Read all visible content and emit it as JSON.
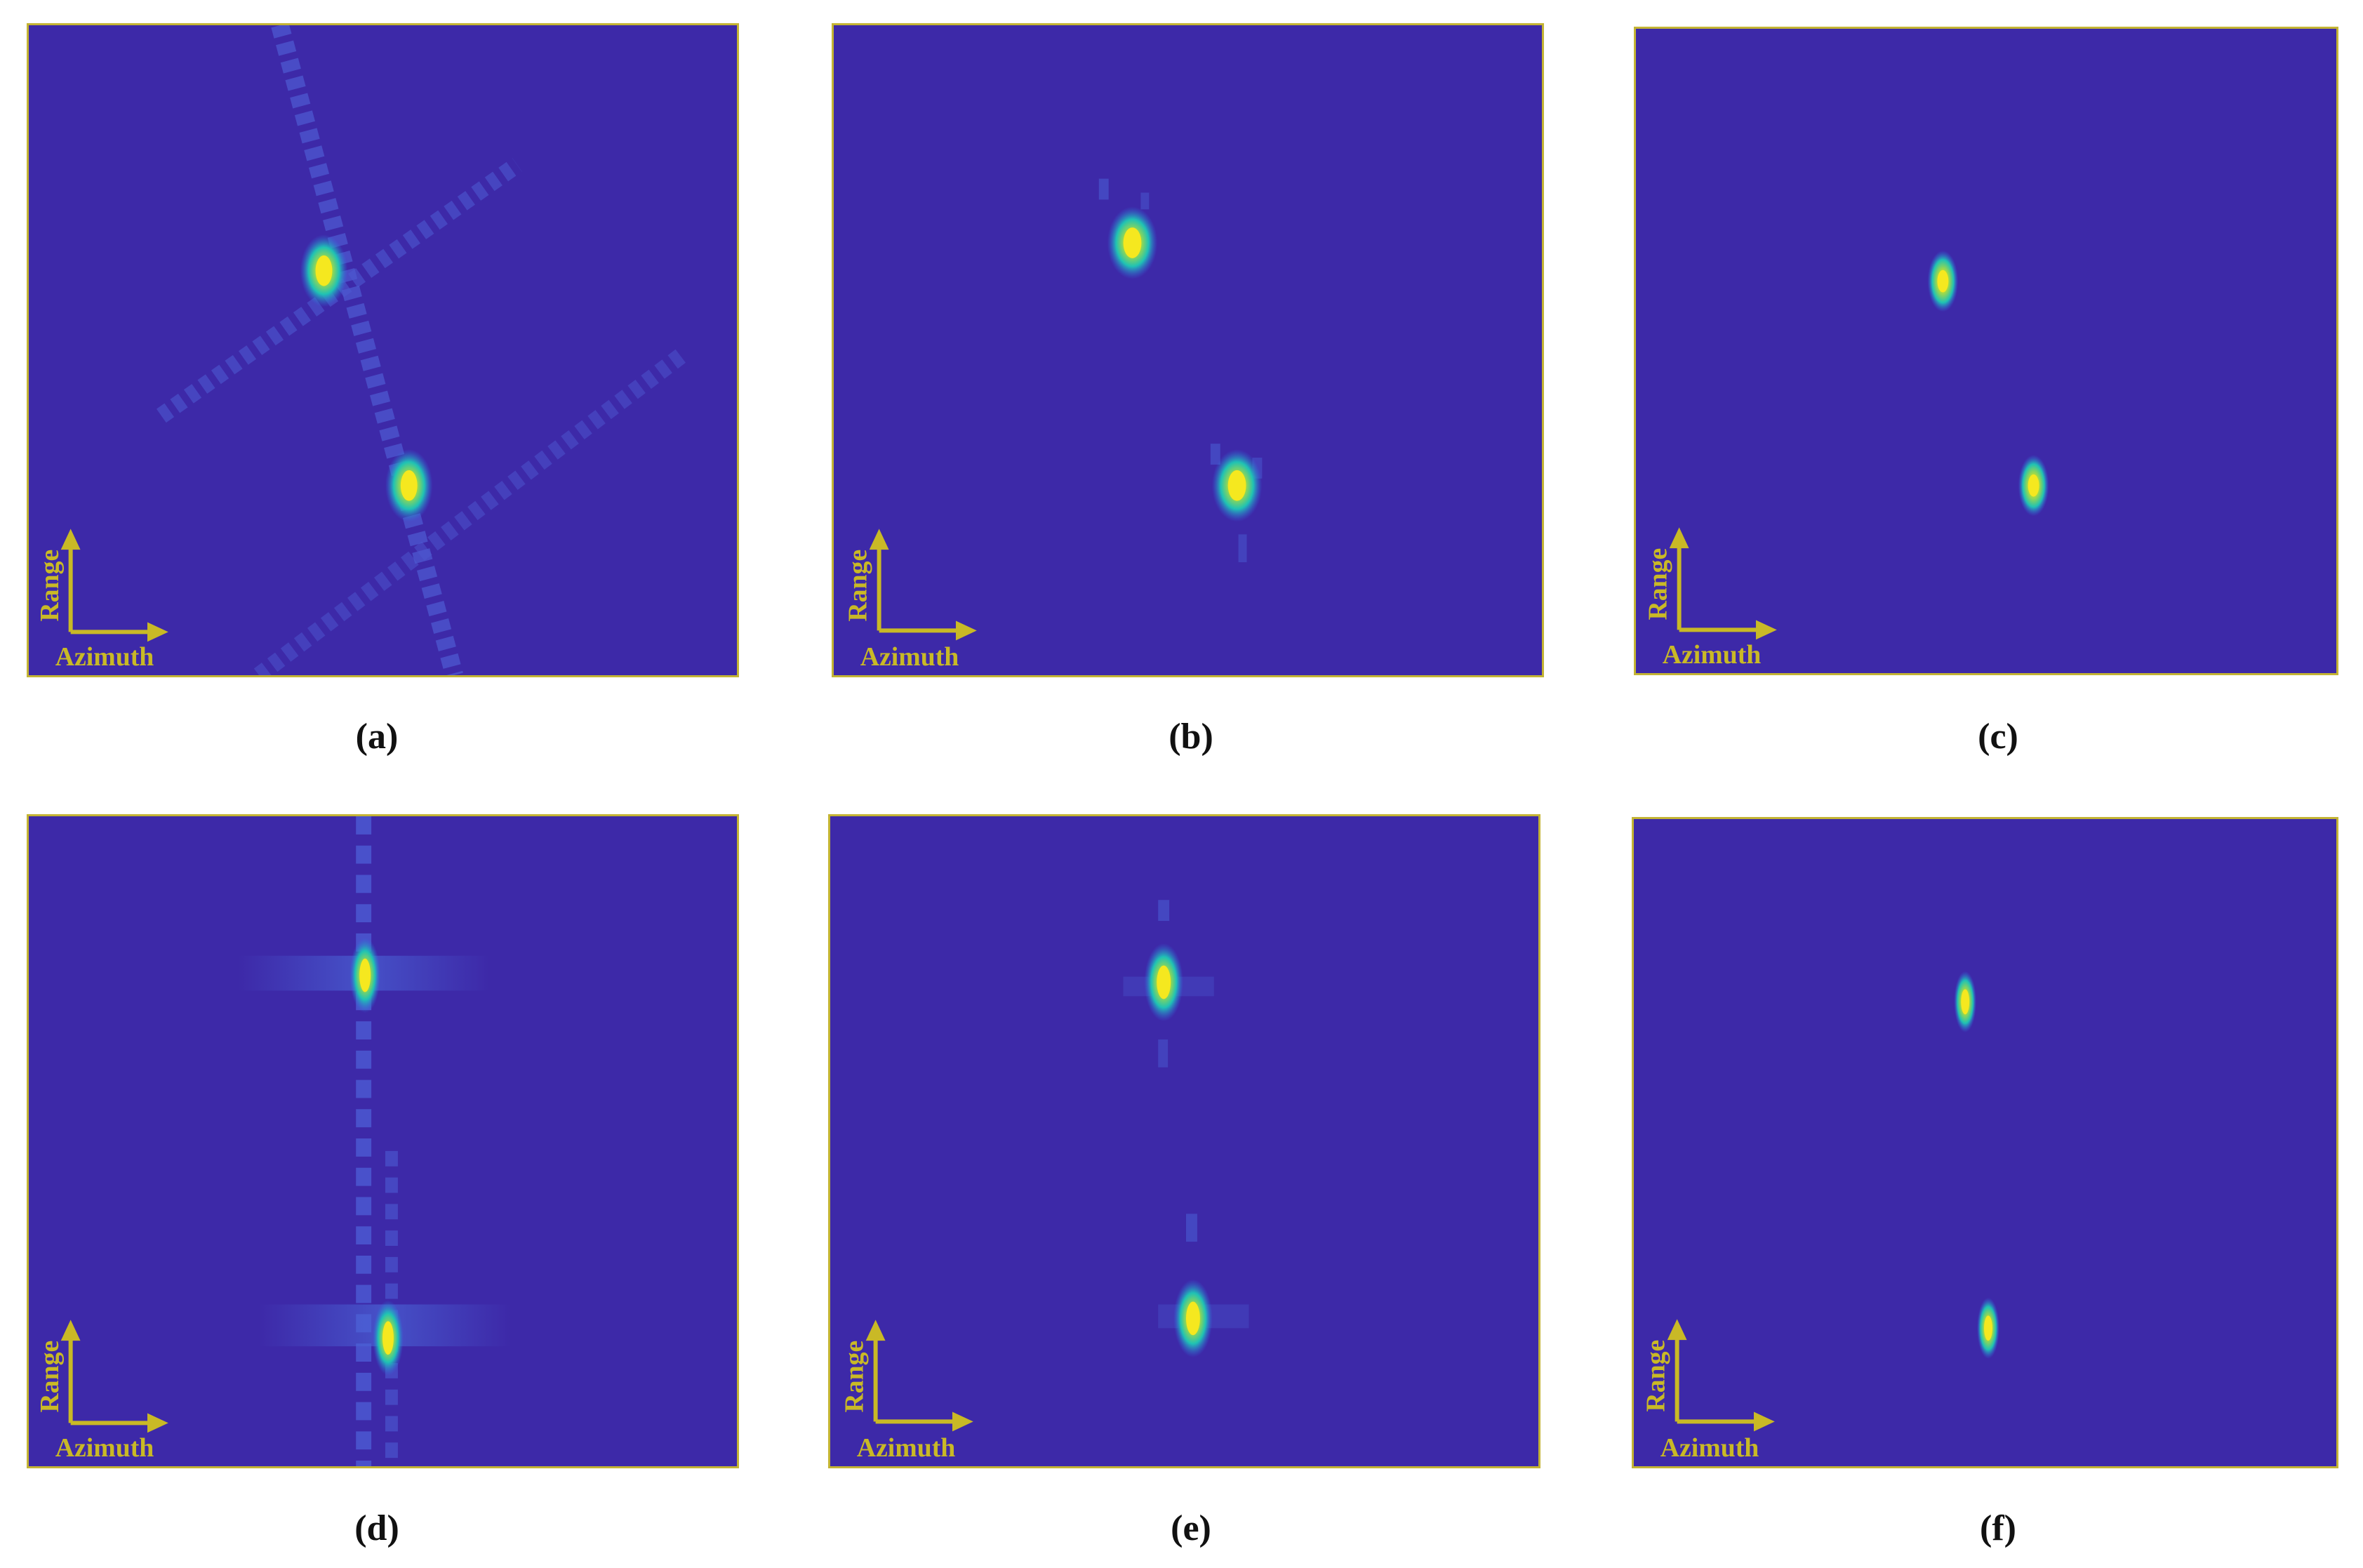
{
  "colors": {
    "background": "#3d29a8",
    "border": "#c4b434",
    "arrow": "#c9b926",
    "spot_hot": "#f5e81f",
    "spot_mid": "#1fc2b4",
    "spot_edge": "#2f6fe0"
  },
  "axis_labels": {
    "vertical": "Range",
    "horizontal": "Azimuth"
  },
  "panels": [
    {
      "id": "a",
      "caption": "(a)"
    },
    {
      "id": "b",
      "caption": "(b)"
    },
    {
      "id": "c",
      "caption": "(c)"
    },
    {
      "id": "d",
      "caption": "(d)"
    },
    {
      "id": "e",
      "caption": "(e)"
    },
    {
      "id": "f",
      "caption": "(f)"
    }
  ]
}
